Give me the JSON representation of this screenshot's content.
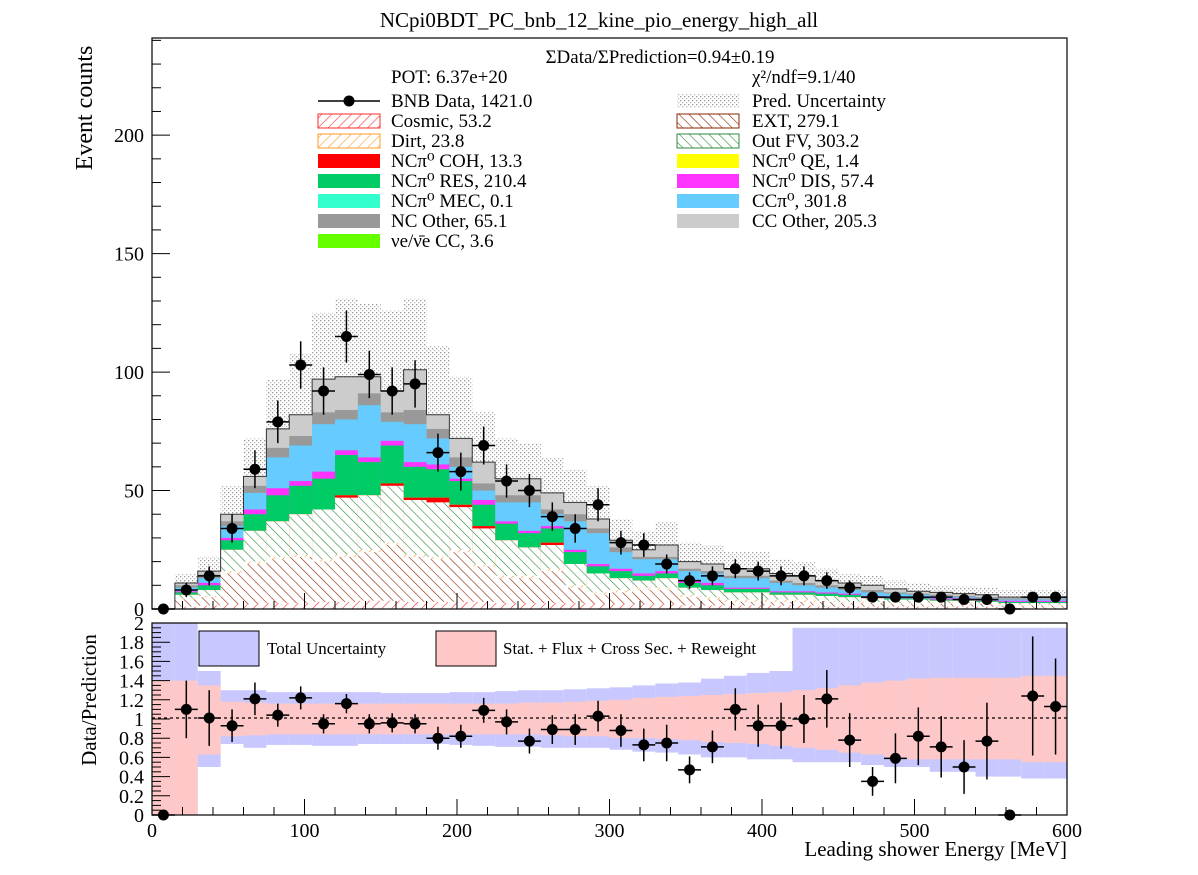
{
  "title": "NCpi0BDT_PC_bnb_12_kine_pio_energy_high_all",
  "colors": {
    "cosmic": "#ff2a2a",
    "ext": "#8b2500",
    "dirt": "#ff9a2a",
    "outfv": "#2d8a3a",
    "coh": "#ff0000",
    "qe": "#ffff00",
    "res": "#00cc66",
    "dis": "#ff33ff",
    "mec": "#33ffcc",
    "ccpi0": "#66ccff",
    "ncother": "#999999",
    "ccother": "#cccccc",
    "nue": "#66ff00",
    "uncert": "#bbbbbb",
    "total_unc": "#c8c8ff",
    "stat_unc": "#ffc8c8"
  },
  "chart_data": [
    {
      "type": "bar",
      "stacked": true,
      "ylabel": "Event counts",
      "xlim": [
        0,
        600
      ],
      "ylim": [
        0,
        241
      ],
      "y_ticks": [
        0,
        50,
        100,
        150,
        200
      ],
      "summary": {
        "ratio_text": "ΣData/ΣPrediction=0.94±0.19",
        "pot_text": "POT: 6.37e+20",
        "chi2_text": "χ²/ndf=9.1/40"
      },
      "legend": [
        {
          "key": "data",
          "label": "BNB Data, 1421.0"
        },
        {
          "key": "uncert",
          "label": "Pred. Uncertainty"
        },
        {
          "key": "cosmic",
          "label": "Cosmic, 53.2"
        },
        {
          "key": "ext",
          "label": "EXT, 279.1"
        },
        {
          "key": "dirt",
          "label": "Dirt, 23.8"
        },
        {
          "key": "outfv",
          "label": "Out FV, 303.2"
        },
        {
          "key": "coh",
          "label": "NCπ⁰ COH,  13.3"
        },
        {
          "key": "qe",
          "label": "NCπ⁰ QE,  1.4"
        },
        {
          "key": "res",
          "label": "NCπ⁰ RES,  210.4"
        },
        {
          "key": "dis",
          "label": "NCπ⁰ DIS,  57.4"
        },
        {
          "key": "mec",
          "label": "NCπ⁰ MEC,  0.1"
        },
        {
          "key": "ccpi0",
          "label": "CCπ⁰, 301.8"
        },
        {
          "key": "ncother",
          "label": "NC Other, 65.1"
        },
        {
          "key": "ccother",
          "label": "CC Other, 205.3"
        },
        {
          "key": "nue",
          "label": "νe/ν̄e CC, 3.6"
        }
      ],
      "bin_edges": [
        0,
        15,
        30,
        45,
        60,
        75,
        90,
        105,
        120,
        135,
        150,
        165,
        180,
        195,
        210,
        225,
        240,
        255,
        270,
        285,
        300,
        315,
        330,
        345,
        360,
        375,
        390,
        405,
        420,
        435,
        450,
        465,
        480,
        495,
        510,
        525,
        540,
        555,
        570,
        585,
        600
      ],
      "stack_tops": {
        "cosmic": [
          0,
          1,
          1.5,
          2,
          2,
          2.5,
          2.5,
          3,
          3,
          3.5,
          3.5,
          3,
          3,
          3,
          3,
          2.5,
          2.5,
          2.5,
          2.5,
          2,
          2,
          2,
          2,
          1.5,
          1.5,
          1.5,
          1.5,
          1.5,
          1.5,
          1,
          1,
          1,
          1,
          1,
          1,
          1,
          1,
          0.5,
          0.5,
          0.5
        ],
        "ext": [
          0,
          4,
          5,
          15,
          19,
          21,
          22,
          20,
          22,
          24,
          27,
          22,
          21,
          24,
          18,
          13,
          13,
          16,
          9,
          6,
          7,
          8,
          8,
          5,
          4,
          3,
          3,
          3,
          3,
          3,
          2.5,
          2.5,
          2,
          2,
          2,
          2,
          2,
          1.5,
          1.5,
          1.5
        ],
        "dirt": [
          0,
          4.5,
          5.5,
          16,
          20,
          22,
          23,
          21,
          23,
          25,
          28,
          23,
          22,
          25,
          19,
          14,
          14,
          17,
          10,
          7,
          8,
          9,
          9,
          6,
          5,
          4,
          4,
          4,
          4,
          3.5,
          3,
          3,
          2.5,
          2.5,
          2.5,
          2.5,
          2.5,
          2,
          2,
          2
        ],
        "outfv": [
          0,
          6,
          8,
          25,
          33,
          37,
          40,
          42,
          47,
          48,
          52,
          46,
          45,
          43,
          34,
          29,
          26,
          27,
          19,
          15,
          13,
          12,
          13,
          9,
          8,
          7,
          7,
          6,
          6,
          5.5,
          5,
          4.5,
          4,
          4,
          3.5,
          3.5,
          3,
          2.5,
          2.5,
          2.5
        ],
        "coh": [
          0,
          6,
          8,
          25,
          33,
          37,
          40,
          42,
          48,
          48,
          53,
          47,
          47,
          44,
          35,
          29,
          26,
          28,
          19,
          15,
          13,
          12,
          13,
          9,
          8,
          7,
          7,
          6,
          6,
          5.5,
          5,
          4.5,
          4,
          4,
          3.5,
          3.5,
          3,
          2.5,
          2.5,
          2.5
        ],
        "qe": [
          0,
          6,
          8,
          25,
          33,
          37,
          40,
          42,
          48,
          48,
          53,
          47,
          47,
          44,
          35,
          29,
          26,
          28,
          19,
          15,
          13,
          12,
          13,
          9,
          8,
          7,
          7,
          6,
          6,
          5.5,
          5,
          4.5,
          4,
          4,
          3.5,
          3.5,
          3,
          2.5,
          2.5,
          2.5
        ],
        "res": [
          0,
          7,
          10,
          29,
          40,
          48,
          52,
          55,
          65,
          62,
          69,
          60,
          59,
          54,
          44,
          36,
          32,
          34,
          24,
          18,
          16,
          14,
          15,
          11,
          10,
          8.5,
          8.5,
          7,
          7,
          6.5,
          6,
          5,
          4.5,
          4.5,
          4,
          4,
          3.5,
          3,
          3,
          3
        ],
        "dis": [
          0,
          7.5,
          11,
          30,
          42,
          51,
          54,
          58,
          67,
          64,
          71,
          62,
          61,
          55,
          46,
          37,
          33,
          35,
          25,
          19,
          17,
          15,
          16,
          12,
          11,
          9,
          9,
          7.5,
          7.5,
          7,
          6.5,
          5.5,
          5,
          5,
          4.5,
          4.5,
          4,
          3.5,
          3.5,
          3.5
        ],
        "mec": [
          0,
          7.5,
          11,
          30,
          42,
          51,
          54,
          58,
          67,
          64,
          71,
          62,
          61,
          55,
          46,
          37,
          33,
          35,
          25,
          19,
          17,
          15,
          16,
          12,
          11,
          9,
          9,
          7.5,
          7.5,
          7,
          6.5,
          5.5,
          5,
          5,
          4.5,
          4.5,
          4,
          3.5,
          3.5,
          3.5
        ],
        "ccpi0": [
          0,
          9,
          13,
          35,
          49,
          64,
          69,
          78,
          80,
          86,
          79,
          78,
          72,
          60,
          50,
          45,
          45,
          40,
          37,
          32,
          24,
          21,
          21,
          16,
          15,
          13,
          13,
          11,
          10,
          9,
          8,
          7,
          6.5,
          6,
          5.5,
          5,
          4.5,
          4,
          4,
          4
        ],
        "ncother": [
          0,
          10,
          14.5,
          37,
          52,
          68,
          73,
          83,
          84,
          91,
          83,
          84,
          76,
          64,
          53,
          48,
          48,
          42,
          40,
          34,
          26,
          22,
          22,
          17,
          16,
          14,
          14,
          12,
          11,
          10,
          9,
          8,
          7,
          6.5,
          6,
          5.5,
          5,
          4.5,
          4.5,
          4.5
        ],
        "ccother": [
          0,
          11,
          16,
          40,
          56,
          76,
          82,
          97,
          98,
          98,
          92,
          101,
          82,
          72,
          62,
          55,
          55,
          49,
          45,
          38,
          29,
          25,
          27,
          20,
          19,
          17,
          17,
          15,
          14,
          12,
          11,
          10,
          8.5,
          7.5,
          7,
          6.5,
          6,
          5,
          5,
          5
        ],
        "nue": [
          0,
          11,
          16,
          40,
          56,
          76,
          82,
          97,
          98,
          98,
          92,
          101,
          82,
          72,
          62,
          55,
          55,
          49,
          45,
          38,
          29,
          25,
          27,
          20,
          19,
          17,
          17,
          15,
          14,
          12,
          11,
          10,
          8.5,
          7.5,
          7,
          6.5,
          6,
          5,
          5,
          5
        ]
      },
      "uncertainty_band": {
        "lo": [
          0,
          6,
          9,
          28,
          40,
          56,
          58,
          70,
          73,
          75,
          70,
          78,
          60,
          52,
          44,
          40,
          40,
          35,
          32,
          28,
          20,
          17,
          18,
          13,
          12,
          11,
          11,
          10,
          9,
          8,
          7,
          6.5,
          5.5,
          5,
          4.5,
          4,
          3.5,
          3,
          3,
          3
        ],
        "hi": [
          1,
          15,
          22,
          52,
          72,
          97,
          108,
          125,
          131,
          129,
          126,
          131,
          111,
          98,
          83,
          72,
          70,
          64,
          59,
          52,
          38,
          33,
          37,
          28,
          27,
          24,
          24,
          21,
          20,
          17,
          15,
          14,
          12,
          11,
          10,
          9.5,
          9,
          8,
          8,
          8
        ]
      },
      "data_points": {
        "x": [
          7.5,
          22.5,
          37.5,
          52.5,
          67.5,
          82.5,
          97.5,
          112.5,
          127.5,
          142.5,
          157.5,
          172.5,
          187.5,
          202.5,
          217.5,
          232.5,
          247.5,
          262.5,
          277.5,
          292.5,
          307.5,
          322.5,
          337.5,
          352.5,
          367.5,
          382.5,
          397.5,
          412.5,
          427.5,
          442.5,
          457.5,
          472.5,
          487.5,
          502.5,
          517.5,
          532.5,
          547.5,
          562.5,
          577.5,
          592.5
        ],
        "y": [
          0,
          8,
          14,
          34,
          59,
          79,
          103,
          92,
          115,
          99,
          92,
          95,
          66,
          58,
          69,
          54,
          50,
          39,
          34,
          44,
          28,
          27,
          19,
          12,
          14,
          17,
          16,
          14,
          14,
          12,
          9,
          5,
          5,
          5,
          5,
          4,
          4,
          0,
          5,
          5
        ],
        "err": [
          1,
          3,
          4,
          6,
          8,
          9,
          10,
          10,
          11,
          10,
          10,
          10,
          8,
          8,
          8,
          7,
          7,
          6,
          6,
          7,
          5,
          5,
          4,
          3.5,
          4,
          4,
          4,
          4,
          4,
          3.5,
          3,
          2.2,
          2.2,
          2.2,
          2.2,
          2,
          2,
          1,
          2.2,
          2.2
        ]
      }
    },
    {
      "type": "scatter",
      "xlabel": "Leading shower Energy [MeV]",
      "ylabel": "Data/Prediction",
      "xlim": [
        0,
        600
      ],
      "ylim": [
        0,
        2
      ],
      "x_ticks": [
        0,
        100,
        200,
        300,
        400,
        500,
        600
      ],
      "y_ticks": [
        0,
        0.2,
        0.4,
        0.6,
        0.8,
        1,
        1.2,
        1.4,
        1.6,
        1.8,
        2
      ],
      "legend": [
        {
          "key": "total_unc",
          "label": "Total Uncertainty"
        },
        {
          "key": "stat_unc",
          "label": "Stat. + Flux + Cross Sec. + Reweight"
        }
      ],
      "total_band": {
        "lo": [
          0,
          0,
          0.5,
          0.74,
          0.7,
          0.73,
          0.73,
          0.72,
          0.72,
          0.74,
          0.74,
          0.74,
          0.74,
          0.73,
          0.72,
          0.71,
          0.71,
          0.7,
          0.7,
          0.7,
          0.68,
          0.66,
          0.65,
          0.63,
          0.6,
          0.6,
          0.58,
          0.58,
          0.55,
          0.55,
          0.55,
          0.52,
          0.5,
          0.5,
          0.45,
          0.45,
          0.4,
          0.4,
          0.38,
          0.38
        ],
        "hi": [
          2,
          2,
          1.5,
          1.3,
          1.3,
          1.28,
          1.28,
          1.28,
          1.28,
          1.28,
          1.27,
          1.27,
          1.27,
          1.28,
          1.28,
          1.29,
          1.3,
          1.3,
          1.31,
          1.32,
          1.33,
          1.35,
          1.37,
          1.38,
          1.42,
          1.45,
          1.48,
          1.5,
          1.95,
          1.95,
          1.95,
          1.95,
          1.95,
          1.95,
          1.95,
          1.95,
          1.95,
          1.95,
          1.95,
          1.95
        ]
      },
      "stat_band": {
        "lo": [
          0,
          0,
          0.63,
          0.82,
          0.83,
          0.84,
          0.84,
          0.84,
          0.84,
          0.84,
          0.84,
          0.84,
          0.84,
          0.84,
          0.84,
          0.84,
          0.84,
          0.83,
          0.82,
          0.82,
          0.8,
          0.8,
          0.79,
          0.78,
          0.76,
          0.75,
          0.74,
          0.72,
          0.7,
          0.68,
          0.65,
          0.63,
          0.6,
          0.58,
          0.58,
          0.58,
          0.58,
          0.58,
          0.55,
          0.55
        ],
        "hi": [
          1.4,
          1.4,
          1.35,
          1.18,
          1.17,
          1.16,
          1.16,
          1.16,
          1.16,
          1.16,
          1.16,
          1.16,
          1.16,
          1.16,
          1.16,
          1.16,
          1.17,
          1.17,
          1.18,
          1.19,
          1.2,
          1.22,
          1.23,
          1.24,
          1.25,
          1.26,
          1.27,
          1.28,
          1.3,
          1.32,
          1.35,
          1.38,
          1.4,
          1.42,
          1.43,
          1.43,
          1.43,
          1.43,
          1.45,
          1.45
        ]
      },
      "points": {
        "x": [
          7.5,
          22.5,
          37.5,
          52.5,
          67.5,
          82.5,
          97.5,
          112.5,
          127.5,
          142.5,
          157.5,
          172.5,
          187.5,
          202.5,
          217.5,
          232.5,
          247.5,
          262.5,
          277.5,
          292.5,
          307.5,
          322.5,
          337.5,
          352.5,
          367.5,
          382.5,
          397.5,
          412.5,
          427.5,
          442.5,
          457.5,
          472.5,
          487.5,
          502.5,
          517.5,
          532.5,
          547.5,
          562.5,
          577.5,
          592.5
        ],
        "y": [
          0,
          1.1,
          1.01,
          0.93,
          1.21,
          1.04,
          1.22,
          0.95,
          1.16,
          0.95,
          0.96,
          0.95,
          0.8,
          0.82,
          1.09,
          0.97,
          0.77,
          0.89,
          0.89,
          1.03,
          0.88,
          0.73,
          0.75,
          0.47,
          0.71,
          1.1,
          0.93,
          0.93,
          1.0,
          1.21,
          0.78,
          0.35,
          0.59,
          0.82,
          0.71,
          0.5,
          0.77,
          0,
          1.24,
          1.13
        ],
        "err": [
          0,
          0.3,
          0.29,
          0.17,
          0.17,
          0.12,
          0.12,
          0.1,
          0.1,
          0.1,
          0.1,
          0.1,
          0.12,
          0.12,
          0.13,
          0.13,
          0.13,
          0.15,
          0.16,
          0.16,
          0.17,
          0.17,
          0.19,
          0.14,
          0.17,
          0.22,
          0.22,
          0.24,
          0.25,
          0.3,
          0.28,
          0.15,
          0.26,
          0.3,
          0.32,
          0.28,
          0.4,
          0,
          0.62,
          0.5
        ]
      }
    }
  ]
}
